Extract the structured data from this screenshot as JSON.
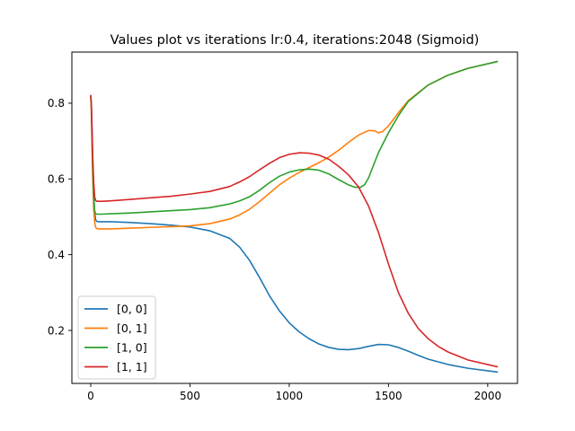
{
  "chart_data": {
    "type": "line",
    "title": "Values plot vs iterations lr:0.4, iterations:2048 (Sigmoid)",
    "xlabel": "",
    "ylabel": "",
    "xlim": [
      -95,
      2150
    ],
    "ylim": [
      0.06,
      0.935
    ],
    "xticks": [
      0,
      500,
      1000,
      1500,
      2000
    ],
    "xtick_labels": [
      "0",
      "500",
      "1000",
      "1500",
      "2000"
    ],
    "yticks": [
      0.2,
      0.4,
      0.6,
      0.8
    ],
    "ytick_labels": [
      "0.2",
      "0.4",
      "0.6",
      "0.8"
    ],
    "grid": false,
    "legend_position": "lower-left",
    "series": [
      {
        "name": "[0, 0]",
        "color": "#1f77b4",
        "x": [
          0,
          3,
          6,
          10,
          15,
          20,
          25,
          30,
          40,
          60,
          100,
          200,
          300,
          400,
          500,
          600,
          700,
          750,
          800,
          850,
          900,
          950,
          1000,
          1050,
          1100,
          1150,
          1200,
          1250,
          1300,
          1350,
          1400,
          1450,
          1500,
          1550,
          1600,
          1650,
          1700,
          1800,
          1900,
          2048
        ],
        "values": [
          0.82,
          0.8,
          0.74,
          0.65,
          0.56,
          0.51,
          0.492,
          0.488,
          0.487,
          0.487,
          0.487,
          0.485,
          0.482,
          0.478,
          0.473,
          0.463,
          0.443,
          0.42,
          0.385,
          0.34,
          0.292,
          0.252,
          0.22,
          0.196,
          0.178,
          0.164,
          0.155,
          0.15,
          0.149,
          0.152,
          0.158,
          0.163,
          0.162,
          0.155,
          0.145,
          0.134,
          0.124,
          0.11,
          0.1,
          0.09
        ]
      },
      {
        "name": "[0, 1]",
        "color": "#ff7f0e",
        "x": [
          0,
          3,
          6,
          10,
          15,
          20,
          25,
          30,
          40,
          60,
          100,
          200,
          300,
          400,
          500,
          600,
          700,
          750,
          800,
          850,
          900,
          950,
          1000,
          1050,
          1100,
          1150,
          1200,
          1250,
          1300,
          1350,
          1400,
          1430,
          1450,
          1470,
          1500,
          1550,
          1600,
          1700,
          1800,
          1900,
          2048
        ],
        "values": [
          0.82,
          0.78,
          0.7,
          0.6,
          0.52,
          0.485,
          0.472,
          0.469,
          0.468,
          0.468,
          0.468,
          0.47,
          0.472,
          0.474,
          0.476,
          0.482,
          0.494,
          0.505,
          0.52,
          0.54,
          0.562,
          0.584,
          0.602,
          0.617,
          0.63,
          0.643,
          0.658,
          0.676,
          0.697,
          0.716,
          0.728,
          0.727,
          0.722,
          0.725,
          0.74,
          0.775,
          0.807,
          0.848,
          0.874,
          0.892,
          0.91
        ]
      },
      {
        "name": "[1, 0]",
        "color": "#2ca02c",
        "x": [
          0,
          3,
          6,
          10,
          15,
          20,
          25,
          30,
          40,
          60,
          100,
          200,
          300,
          400,
          500,
          600,
          700,
          750,
          800,
          850,
          900,
          950,
          1000,
          1050,
          1100,
          1150,
          1200,
          1250,
          1300,
          1330,
          1360,
          1380,
          1400,
          1420,
          1450,
          1500,
          1550,
          1600,
          1700,
          1800,
          1900,
          2048
        ],
        "values": [
          0.82,
          0.79,
          0.72,
          0.63,
          0.55,
          0.515,
          0.508,
          0.507,
          0.507,
          0.507,
          0.508,
          0.51,
          0.513,
          0.516,
          0.519,
          0.524,
          0.534,
          0.542,
          0.553,
          0.57,
          0.59,
          0.607,
          0.618,
          0.624,
          0.626,
          0.623,
          0.613,
          0.598,
          0.584,
          0.578,
          0.578,
          0.585,
          0.603,
          0.63,
          0.67,
          0.722,
          0.767,
          0.805,
          0.848,
          0.874,
          0.892,
          0.91
        ]
      },
      {
        "name": "[1, 1]",
        "color": "#d62728",
        "x": [
          0,
          3,
          6,
          10,
          15,
          20,
          25,
          30,
          40,
          60,
          100,
          200,
          300,
          400,
          500,
          600,
          700,
          750,
          800,
          850,
          900,
          950,
          1000,
          1050,
          1100,
          1150,
          1200,
          1250,
          1300,
          1350,
          1400,
          1450,
          1500,
          1550,
          1600,
          1650,
          1700,
          1750,
          1800,
          1900,
          2048
        ],
        "values": [
          0.82,
          0.8,
          0.74,
          0.66,
          0.59,
          0.552,
          0.543,
          0.541,
          0.541,
          0.541,
          0.542,
          0.546,
          0.55,
          0.554,
          0.56,
          0.567,
          0.58,
          0.592,
          0.606,
          0.624,
          0.641,
          0.656,
          0.665,
          0.669,
          0.668,
          0.663,
          0.652,
          0.633,
          0.61,
          0.578,
          0.528,
          0.458,
          0.375,
          0.3,
          0.245,
          0.205,
          0.178,
          0.158,
          0.143,
          0.122,
          0.104
        ]
      }
    ]
  }
}
